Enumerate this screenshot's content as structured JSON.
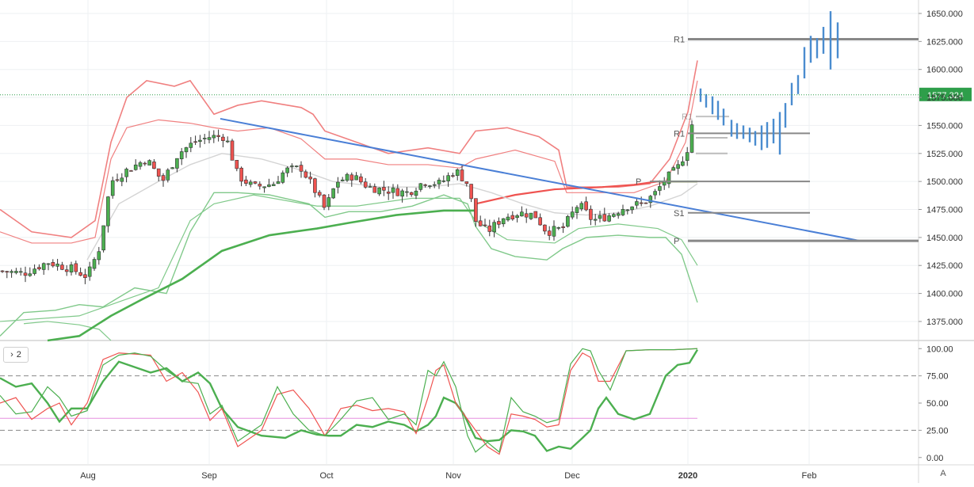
{
  "colors": {
    "up": "#4caf50",
    "down": "#ef5350",
    "trendline": "#4a7fd6",
    "bb_outer": "#f08080",
    "bb_lower": "#80c98a",
    "ma_long": "#4caf50",
    "ma_red": "#ef5350",
    "ma_grey": "#d4d4d4",
    "pivot_line": "#888888",
    "projection": "#4a8ccf",
    "price_label_bg": "#2e9e4a",
    "stoch_fast": "#4caf50",
    "stoch_slow": "#ef5350"
  },
  "chart_data": [
    {
      "type": "candlestick",
      "instrument_hint": "price chart",
      "x_labels": [
        "Aug",
        "Sep",
        "Oct",
        "Nov",
        "Dec",
        "2020",
        "Feb"
      ],
      "y_ticks": [
        "1650.000",
        "1625.000",
        "1600.000",
        "1575.000",
        "1550.000",
        "1525.000",
        "1500.000",
        "1475.000",
        "1450.000",
        "1425.000",
        "1400.000",
        "1375.000"
      ],
      "ylim": [
        1358,
        1662
      ],
      "last_price_label": "1577.324",
      "last_price": 1577.324,
      "pivot_levels": [
        {
          "label": "R1",
          "value": 1627
        },
        {
          "label": "R1",
          "value": 1558
        },
        {
          "label": "R1",
          "value": 1543
        },
        {
          "label": "P",
          "value": 1500
        },
        {
          "label": "S1",
          "value": 1472
        },
        {
          "label": "P",
          "value": 1447
        }
      ],
      "trendline": {
        "from": {
          "date": "Sep",
          "value": 1556
        },
        "to": {
          "date": "Feb",
          "value": 1447
        }
      },
      "projection_bars_visible": true,
      "indicators": [
        "Bollinger Bands",
        "moving averages",
        "pivot points"
      ]
    },
    {
      "type": "line",
      "panel": "oscillator",
      "collapse_label": "2",
      "y_ticks": [
        "100.00",
        "75.00",
        "50.00",
        "25.00",
        "0.00"
      ],
      "ylim": [
        -6,
        106
      ],
      "levels": [
        75,
        25,
        36
      ]
    }
  ],
  "ui": {
    "collapse_button_label": "2",
    "auto_scale_label": "A"
  }
}
